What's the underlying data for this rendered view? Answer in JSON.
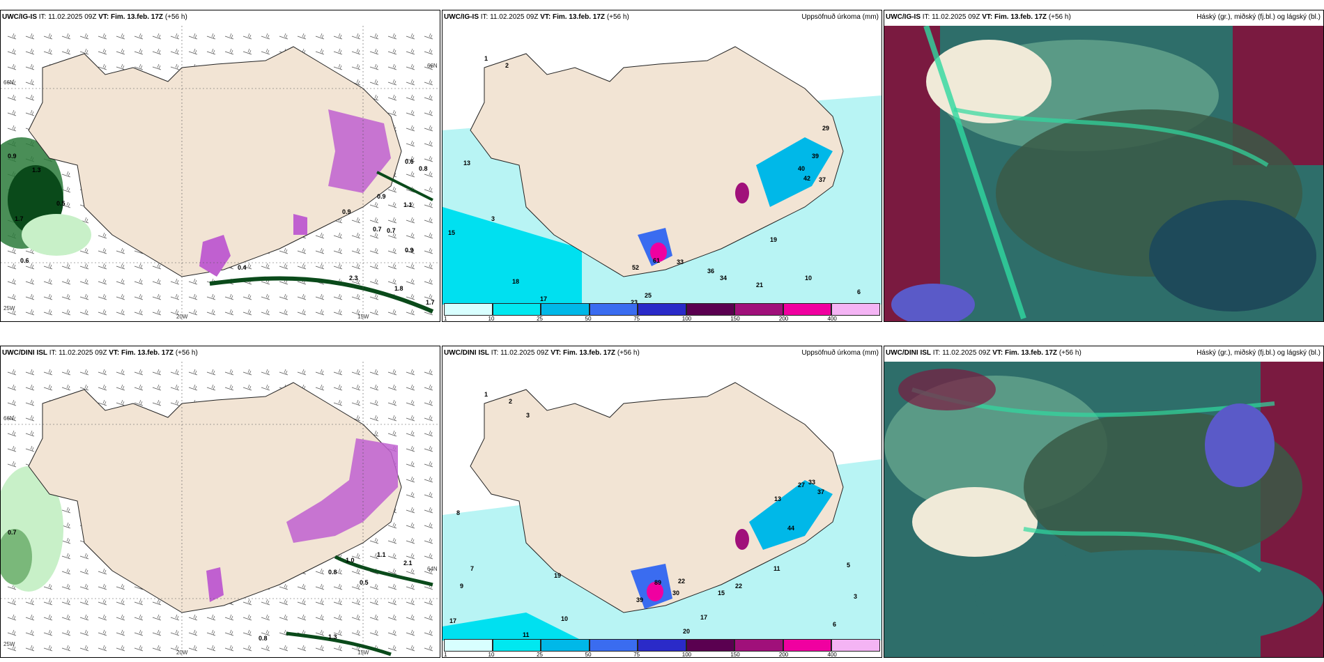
{
  "rows": [
    {
      "model": "UWC/IG-IS",
      "it": "IT: 11.02.2025 09Z",
      "vt_label": "VT:",
      "vt": "Fim. 13.feb. 17Z",
      "lead": "(+56 h)",
      "wind_labels": [
        "0.9",
        "1.3",
        "0.5",
        "1.7",
        "0.6",
        "0.9",
        "0.6",
        "0.8",
        "0.4",
        "0.7",
        "0.7",
        "0.9",
        "1.1",
        "0.9",
        "2.3",
        "1.8",
        "1.7"
      ],
      "precip_labels": [
        "1",
        "2",
        "3",
        "15",
        "13",
        "18",
        "17",
        "23",
        "25",
        "52",
        "61",
        "33",
        "36",
        "34",
        "21",
        "19",
        "29",
        "39",
        "40",
        "42",
        "37",
        "10",
        "6"
      ],
      "axis_left_top": "66N",
      "axis_left_bottom": "25W",
      "axis_bottom_1": "20W",
      "axis_bottom_2": "15W",
      "axis_right_top": "66N"
    },
    {
      "model": "UWC/DINI ISL",
      "it": "IT: 11.02.2025 09Z",
      "vt_label": "VT:",
      "vt": "Fim. 13.feb. 17Z",
      "lead": "(+56 h)",
      "wind_labels": [
        "0.7",
        "0.8",
        "1.0",
        "0.5",
        "0.8",
        "1.1",
        "2.1",
        "1.3"
      ],
      "precip_labels": [
        "1",
        "2",
        "3",
        "8",
        "7",
        "9",
        "17",
        "11",
        "10",
        "19",
        "22",
        "30",
        "39",
        "89",
        "20",
        "17",
        "15",
        "22",
        "11",
        "13",
        "27",
        "37",
        "33",
        "44",
        "5",
        "3",
        "6"
      ],
      "axis_left_top": "66N",
      "axis_left_bottom": "25W",
      "axis_bottom_1": "20W",
      "axis_bottom_2": "15W",
      "axis_right_top": "64N"
    }
  ],
  "precip_title": "Uppsöfnuð úrkoma (mm)",
  "cloud_title": "Háský (gr.), miðský (fj.bl.) og lágský (bl.)",
  "colorbar": {
    "ticks": [
      "1",
      "10",
      "25",
      "50",
      "75",
      "100",
      "150",
      "200",
      "400"
    ],
    "colors": [
      "#d8ffff",
      "#00e8f0",
      "#00b8e8",
      "#3a6cf0",
      "#2a2ac8",
      "#5a0050",
      "#a0107a",
      "#f000a0",
      "#f4b4f4"
    ]
  },
  "colors": {
    "land": "#f2e4d4",
    "precip_light": "#b8f4f4",
    "precip_mid": "#00e0f0",
    "green_light": "#c8f0c8",
    "green_dark": "#0a4a1a",
    "purple": "#c060d0",
    "cloud_teal": "#2e6e6a",
    "cloud_dark": "#3a5a46",
    "cloud_maroon": "#7a1a40",
    "cloud_blue": "#5a5ac8"
  }
}
